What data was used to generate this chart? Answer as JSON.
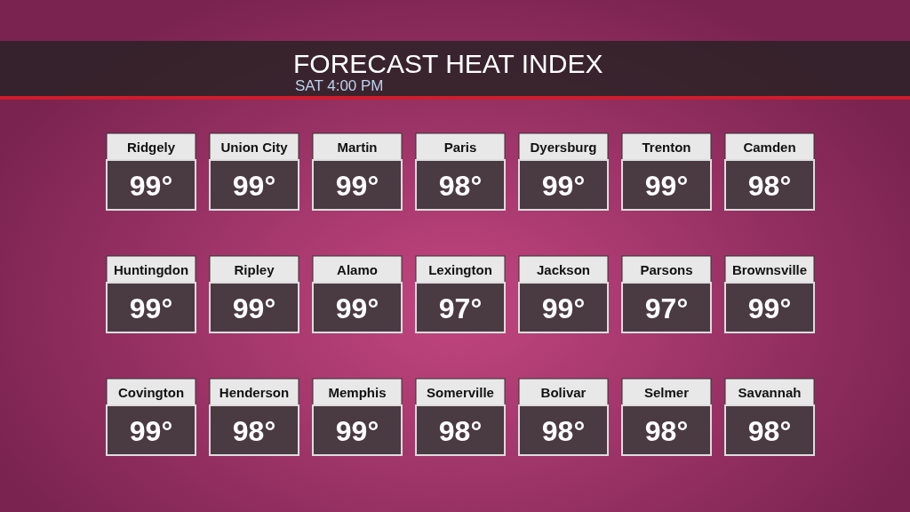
{
  "chart_data": {
    "type": "other",
    "title": "FORECAST HEAT INDEX",
    "subtitle": "SAT 4:00 PM",
    "categories": [
      "Ridgely",
      "Union City",
      "Martin",
      "Paris",
      "Dyersburg",
      "Trenton",
      "Camden",
      "Huntingdon",
      "Ripley",
      "Alamo",
      "Lexington",
      "Jackson",
      "Parsons",
      "Brownsville",
      "Covington",
      "Henderson",
      "Memphis",
      "Somerville",
      "Bolivar",
      "Selmer",
      "Savannah"
    ],
    "values": [
      99,
      99,
      99,
      98,
      99,
      99,
      98,
      99,
      99,
      99,
      97,
      99,
      97,
      99,
      99,
      98,
      99,
      98,
      98,
      98,
      98
    ],
    "value_labels": [
      "99°",
      "99°",
      "99°",
      "98°",
      "99°",
      "99°",
      "98°",
      "99°",
      "99°",
      "99°",
      "97°",
      "99°",
      "97°",
      "99°",
      "99°",
      "98°",
      "99°",
      "98°",
      "98°",
      "98°",
      "98°"
    ]
  }
}
